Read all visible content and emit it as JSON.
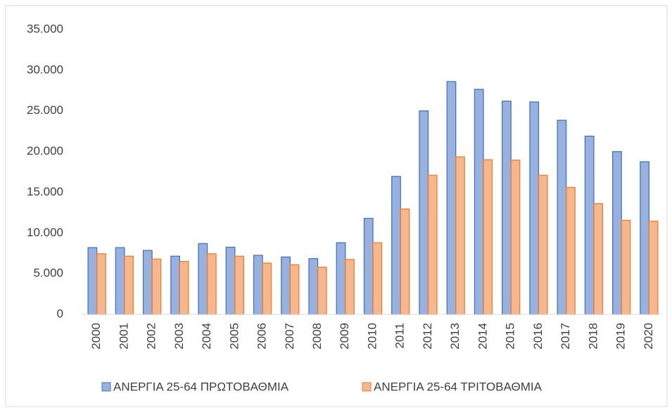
{
  "chart_data": {
    "type": "bar",
    "categories": [
      "2000",
      "2001",
      "2002",
      "2003",
      "2004",
      "2005",
      "2006",
      "2007",
      "2008",
      "2009",
      "2010",
      "2011",
      "2012",
      "2013",
      "2014",
      "2015",
      "2016",
      "2017",
      "2018",
      "2019",
      "2020"
    ],
    "series": [
      {
        "name": "ΑΝΕΡΓΙΑ 25-64 ΠΡΩΤΟΒΑΘΜΙΑ",
        "color": "#4472c4",
        "values": [
          8200,
          8200,
          7850,
          7150,
          8700,
          8250,
          7250,
          7050,
          6850,
          8800,
          11800,
          16950,
          25000,
          28600,
          27650,
          26200,
          26100,
          23850,
          21900,
          20000,
          18750
        ]
      },
      {
        "name": "ΑΝΕΡΓΙΑ 25-64 ΤΡΙΤΟΒΑΘΜΙΑ",
        "color": "#ed7d31",
        "values": [
          7450,
          7150,
          6800,
          6500,
          7450,
          7150,
          6300,
          6100,
          5800,
          6750,
          8800,
          12950,
          17100,
          19350,
          19000,
          18950,
          17100,
          15600,
          13600,
          11550,
          11450
        ]
      }
    ],
    "ylim": [
      0,
      35000
    ],
    "yticks": [
      0,
      {
        "value": 5000,
        "label": "5.000"
      },
      {
        "value": 10000,
        "label": "10.000"
      },
      {
        "value": 15000,
        "label": "15.000"
      },
      {
        "value": 20000,
        "label": "20.000"
      },
      {
        "value": 25000,
        "label": "25.000"
      },
      {
        "value": 30000,
        "label": "30.000"
      },
      {
        "value": 35000,
        "label": "35.000"
      }
    ],
    "grid": false,
    "legend": "bottom"
  }
}
